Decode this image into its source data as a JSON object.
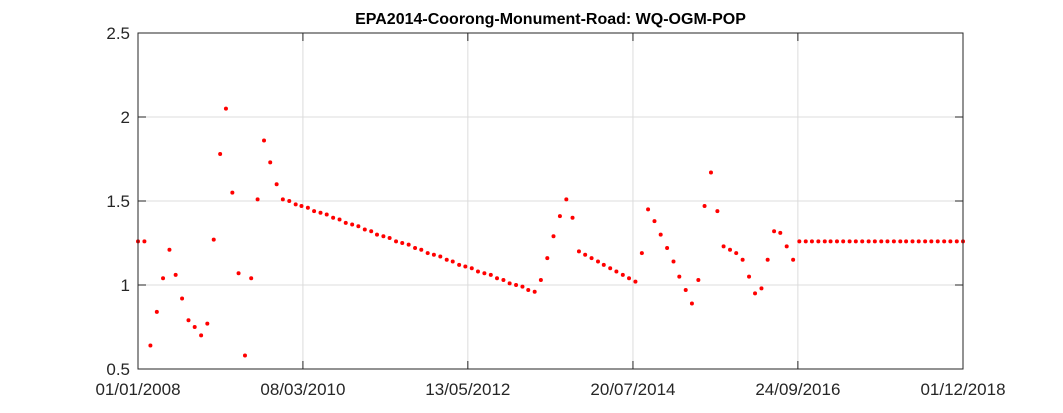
{
  "chart_data": {
    "type": "scatter",
    "title": "EPA2014-Coorong-Monument-Road: WQ-OGM-POP",
    "xlabel": "",
    "ylabel": "",
    "x_axis": {
      "type": "date",
      "range": [
        "2008-01-01",
        "2018-12-01"
      ],
      "ticks": [
        "2008-01-01",
        "2010-03-08",
        "2012-05-13",
        "2014-07-20",
        "2016-09-24",
        "2018-12-01"
      ],
      "tick_labels": [
        "01/01/2008",
        "08/03/2010",
        "13/05/2012",
        "20/07/2014",
        "24/09/2016",
        "01/12/2018"
      ]
    },
    "y_axis": {
      "range": [
        0.5,
        2.5
      ],
      "ticks": [
        0.5,
        1,
        1.5,
        2,
        2.5
      ],
      "tick_labels": [
        "0.5",
        "1",
        "1.5",
        "2",
        "2.5"
      ]
    },
    "grid": true,
    "marker_color": "#ff0000",
    "series": [
      {
        "points": [
          [
            "2008-01-01",
            1.26
          ],
          [
            "2008-02-01",
            1.26
          ],
          [
            "2008-03-01",
            0.64
          ],
          [
            "2008-04-01",
            0.84
          ],
          [
            "2008-05-01",
            1.04
          ],
          [
            "2008-06-01",
            1.21
          ],
          [
            "2008-07-01",
            1.06
          ],
          [
            "2008-08-01",
            0.92
          ],
          [
            "2008-09-01",
            0.79
          ],
          [
            "2008-10-01",
            0.75
          ],
          [
            "2008-11-01",
            0.7
          ],
          [
            "2008-12-01",
            0.77
          ],
          [
            "2009-01-01",
            1.27
          ],
          [
            "2009-02-01",
            1.78
          ],
          [
            "2009-03-01",
            2.05
          ],
          [
            "2009-04-01",
            1.55
          ],
          [
            "2009-05-01",
            1.07
          ],
          [
            "2009-06-01",
            0.58
          ],
          [
            "2009-07-01",
            1.04
          ],
          [
            "2009-08-01",
            1.51
          ],
          [
            "2009-09-01",
            1.86
          ],
          [
            "2009-10-01",
            1.73
          ],
          [
            "2009-11-01",
            1.6
          ],
          [
            "2009-12-01",
            1.51
          ],
          [
            "2010-01-01",
            1.5
          ],
          [
            "2010-02-01",
            1.48
          ],
          [
            "2010-03-01",
            1.47
          ],
          [
            "2010-04-01",
            1.46
          ],
          [
            "2010-05-01",
            1.44
          ],
          [
            "2010-06-01",
            1.43
          ],
          [
            "2010-07-01",
            1.42
          ],
          [
            "2010-08-01",
            1.4
          ],
          [
            "2010-09-01",
            1.39
          ],
          [
            "2010-10-01",
            1.37
          ],
          [
            "2010-11-01",
            1.36
          ],
          [
            "2010-12-01",
            1.35
          ],
          [
            "2011-01-01",
            1.33
          ],
          [
            "2011-02-01",
            1.32
          ],
          [
            "2011-03-01",
            1.3
          ],
          [
            "2011-04-01",
            1.29
          ],
          [
            "2011-05-01",
            1.28
          ],
          [
            "2011-06-01",
            1.26
          ],
          [
            "2011-07-01",
            1.25
          ],
          [
            "2011-08-01",
            1.24
          ],
          [
            "2011-09-01",
            1.22
          ],
          [
            "2011-10-01",
            1.21
          ],
          [
            "2011-11-01",
            1.19
          ],
          [
            "2011-12-01",
            1.18
          ],
          [
            "2012-01-01",
            1.17
          ],
          [
            "2012-02-01",
            1.15
          ],
          [
            "2012-03-01",
            1.14
          ],
          [
            "2012-04-01",
            1.12
          ],
          [
            "2012-05-01",
            1.11
          ],
          [
            "2012-06-01",
            1.1
          ],
          [
            "2012-07-01",
            1.08
          ],
          [
            "2012-08-01",
            1.07
          ],
          [
            "2012-09-01",
            1.06
          ],
          [
            "2012-10-01",
            1.04
          ],
          [
            "2012-11-01",
            1.03
          ],
          [
            "2012-12-01",
            1.01
          ],
          [
            "2013-01-01",
            1.0
          ],
          [
            "2013-02-01",
            0.99
          ],
          [
            "2013-03-01",
            0.97
          ],
          [
            "2013-04-01",
            0.96
          ],
          [
            "2013-05-01",
            1.03
          ],
          [
            "2013-06-01",
            1.16
          ],
          [
            "2013-07-01",
            1.29
          ],
          [
            "2013-08-01",
            1.41
          ],
          [
            "2013-09-01",
            1.51
          ],
          [
            "2013-10-01",
            1.4
          ],
          [
            "2013-11-01",
            1.2
          ],
          [
            "2013-12-01",
            1.18
          ],
          [
            "2014-01-01",
            1.16
          ],
          [
            "2014-02-01",
            1.14
          ],
          [
            "2014-03-01",
            1.12
          ],
          [
            "2014-04-01",
            1.1
          ],
          [
            "2014-05-01",
            1.08
          ],
          [
            "2014-06-01",
            1.06
          ],
          [
            "2014-07-01",
            1.04
          ],
          [
            "2014-08-01",
            1.02
          ],
          [
            "2014-09-01",
            1.19
          ],
          [
            "2014-10-01",
            1.45
          ],
          [
            "2014-11-01",
            1.38
          ],
          [
            "2014-12-01",
            1.3
          ],
          [
            "2015-01-01",
            1.22
          ],
          [
            "2015-02-01",
            1.14
          ],
          [
            "2015-03-01",
            1.05
          ],
          [
            "2015-04-01",
            0.97
          ],
          [
            "2015-05-01",
            0.89
          ],
          [
            "2015-06-01",
            1.03
          ],
          [
            "2015-07-01",
            1.47
          ],
          [
            "2015-08-01",
            1.67
          ],
          [
            "2015-09-01",
            1.44
          ],
          [
            "2015-10-01",
            1.23
          ],
          [
            "2015-11-01",
            1.21
          ],
          [
            "2015-12-01",
            1.19
          ],
          [
            "2016-01-01",
            1.15
          ],
          [
            "2016-02-01",
            1.05
          ],
          [
            "2016-03-01",
            0.95
          ],
          [
            "2016-04-01",
            0.98
          ],
          [
            "2016-05-01",
            1.15
          ],
          [
            "2016-06-01",
            1.32
          ],
          [
            "2016-07-01",
            1.31
          ],
          [
            "2016-08-01",
            1.23
          ],
          [
            "2016-09-01",
            1.15
          ],
          [
            "2016-10-01",
            1.26
          ],
          [
            "2016-11-01",
            1.26
          ],
          [
            "2016-12-01",
            1.26
          ],
          [
            "2017-01-01",
            1.26
          ],
          [
            "2017-02-01",
            1.26
          ],
          [
            "2017-03-01",
            1.26
          ],
          [
            "2017-04-01",
            1.26
          ],
          [
            "2017-05-01",
            1.26
          ],
          [
            "2017-06-01",
            1.26
          ],
          [
            "2017-07-01",
            1.26
          ],
          [
            "2017-08-01",
            1.26
          ],
          [
            "2017-09-01",
            1.26
          ],
          [
            "2017-10-01",
            1.26
          ],
          [
            "2017-11-01",
            1.26
          ],
          [
            "2017-12-01",
            1.26
          ],
          [
            "2018-01-01",
            1.26
          ],
          [
            "2018-02-01",
            1.26
          ],
          [
            "2018-03-01",
            1.26
          ],
          [
            "2018-04-01",
            1.26
          ],
          [
            "2018-05-01",
            1.26
          ],
          [
            "2018-06-01",
            1.26
          ],
          [
            "2018-07-01",
            1.26
          ],
          [
            "2018-08-01",
            1.26
          ],
          [
            "2018-09-01",
            1.26
          ],
          [
            "2018-10-01",
            1.26
          ],
          [
            "2018-11-01",
            1.26
          ],
          [
            "2018-12-01",
            1.26
          ]
        ]
      }
    ]
  }
}
